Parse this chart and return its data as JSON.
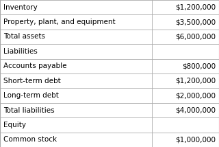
{
  "rows": [
    {
      "label": "Inventory",
      "value": "$1,200,000",
      "type": "normal"
    },
    {
      "label": "Property, plant, and equipment",
      "value": "$3,500,000",
      "type": "normal"
    },
    {
      "label": "Total assets",
      "value": "$6,000,000",
      "type": "normal"
    },
    {
      "label": "Liabilities",
      "value": "",
      "type": "header"
    },
    {
      "label": "Accounts payable",
      "value": "$800,000",
      "type": "normal"
    },
    {
      "label": "Short-term debt",
      "value": "$1,200,000",
      "type": "normal"
    },
    {
      "label": "Long-term debt",
      "value": "$2,000,000",
      "type": "normal"
    },
    {
      "label": "Total liabilities",
      "value": "$4,000,000",
      "type": "normal"
    },
    {
      "label": "Equity",
      "value": "",
      "type": "header"
    },
    {
      "label": "Common stock",
      "value": "$1,000,000",
      "type": "normal"
    }
  ],
  "col_split": 0.695,
  "bg_white": "#ffffff",
  "border_color": "#aaaaaa",
  "text_color": "#000000",
  "font_size": 7.5
}
